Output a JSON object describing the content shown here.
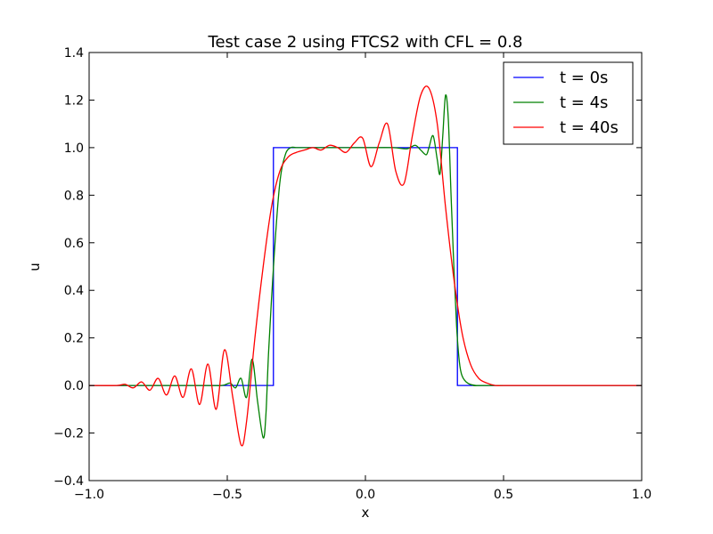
{
  "chart_data": {
    "type": "line",
    "title": "Test case 2 using FTCS2 with CFL = 0.8",
    "xlabel": "x",
    "ylabel": "u",
    "xlim": [
      -1.0,
      1.0
    ],
    "ylim": [
      -0.4,
      1.4
    ],
    "xticks": [
      "−1.0",
      "−0.5",
      "0.0",
      "0.5",
      "1.0"
    ],
    "yticks": [
      "−0.4",
      "−0.2",
      "0.0",
      "0.2",
      "0.4",
      "0.6",
      "0.8",
      "1.0",
      "1.2",
      "1.4"
    ],
    "grid": false,
    "legend": "top-right",
    "series": [
      {
        "name": "t = 0s",
        "color": "#0000ff",
        "x": [
          -1.0,
          -0.333,
          -0.333,
          0.333,
          0.333,
          1.0
        ],
        "y": [
          0.0,
          0.0,
          1.0,
          1.0,
          0.0,
          0.0
        ]
      },
      {
        "name": "t = 4s",
        "color": "#008000",
        "x": [
          -1.0,
          -0.6,
          -0.52,
          -0.49,
          -0.47,
          -0.45,
          -0.43,
          -0.41,
          -0.39,
          -0.37,
          -0.36,
          -0.35,
          -0.33,
          -0.31,
          -0.29,
          -0.27,
          -0.25,
          -0.22,
          -0.2,
          -0.1,
          0.0,
          0.1,
          0.15,
          0.18,
          0.2,
          0.22,
          0.23,
          0.245,
          0.26,
          0.27,
          0.28,
          0.29,
          0.3,
          0.31,
          0.32,
          0.33,
          0.34,
          0.35,
          0.37,
          0.4,
          0.45,
          1.0
        ],
        "y": [
          0.0,
          0.0,
          0.0,
          0.01,
          -0.01,
          0.03,
          -0.05,
          0.11,
          -0.07,
          -0.22,
          -0.12,
          0.15,
          0.55,
          0.85,
          0.97,
          1.0,
          1.0,
          1.0,
          1.0,
          1.0,
          1.0,
          1.0,
          0.995,
          1.01,
          0.99,
          0.97,
          1.0,
          1.05,
          0.95,
          0.89,
          1.05,
          1.22,
          1.12,
          0.8,
          0.5,
          0.25,
          0.1,
          0.04,
          0.01,
          0.0,
          0.0,
          0.0
        ]
      },
      {
        "name": "t = 40s",
        "color": "#ff0000",
        "x": [
          -1.0,
          -0.9,
          -0.87,
          -0.84,
          -0.81,
          -0.78,
          -0.75,
          -0.72,
          -0.69,
          -0.66,
          -0.63,
          -0.6,
          -0.57,
          -0.54,
          -0.51,
          -0.48,
          -0.45,
          -0.43,
          -0.4,
          -0.37,
          -0.34,
          -0.31,
          -0.28,
          -0.25,
          -0.22,
          -0.19,
          -0.16,
          -0.13,
          -0.1,
          -0.07,
          -0.04,
          -0.01,
          0.02,
          0.05,
          0.08,
          0.11,
          0.14,
          0.17,
          0.2,
          0.23,
          0.26,
          0.29,
          0.32,
          0.35,
          0.38,
          0.41,
          0.44,
          0.47,
          0.5,
          0.55,
          1.0
        ],
        "y": [
          0.0,
          0.0,
          0.005,
          -0.01,
          0.015,
          -0.02,
          0.03,
          -0.04,
          0.04,
          -0.05,
          0.07,
          -0.08,
          0.09,
          -0.1,
          0.15,
          -0.05,
          -0.25,
          -0.15,
          0.2,
          0.5,
          0.75,
          0.9,
          0.96,
          0.98,
          0.99,
          1.0,
          0.99,
          1.01,
          1.0,
          0.98,
          1.02,
          1.04,
          0.92,
          1.02,
          1.1,
          0.9,
          0.85,
          1.05,
          1.22,
          1.25,
          1.1,
          0.75,
          0.45,
          0.22,
          0.09,
          0.03,
          0.01,
          0.0,
          0.0,
          0.0,
          0.0
        ]
      }
    ]
  }
}
